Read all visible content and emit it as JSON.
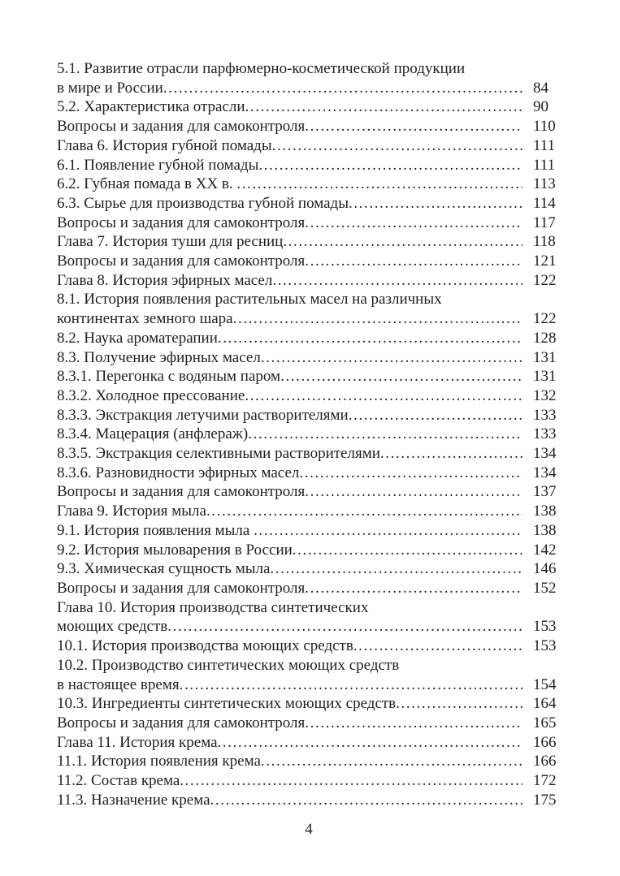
{
  "document": {
    "kind": "book-table-of-contents-page",
    "language": "Russian",
    "text_color": "#1f1f1f",
    "background_color": "#ffffff"
  },
  "toc": {
    "entries": [
      {
        "label": "5.1. Развитие отрасли парфюмерно-косметической продукции",
        "page": ""
      },
      {
        "label": "в мире и России",
        "page": "84"
      },
      {
        "label": "5.2. Характеристика отрасли",
        "page": "90"
      },
      {
        "label": "Вопросы и задания для самоконтроля",
        "page": "110"
      },
      {
        "label": "Глава 6. История губной помады",
        "page": "111"
      },
      {
        "label": "6.1. Появление губной помады",
        "page": "111"
      },
      {
        "label": "6.2. Губная помада в XX в. ",
        "page": "113"
      },
      {
        "label": "6.3. Сырье для производства губной помады",
        "page": "114"
      },
      {
        "label": "Вопросы и задания для самоконтроля",
        "page": "117"
      },
      {
        "label": "Глава 7. История туши для ресниц",
        "page": "118"
      },
      {
        "label": "Вопросы и задания для самоконтроля",
        "page": "121"
      },
      {
        "label": "Глава 8. История эфирных масел",
        "page": "122"
      },
      {
        "label": "8.1. История появления растительных масел на различных",
        "page": ""
      },
      {
        "label": "континентах земного шара",
        "page": "122"
      },
      {
        "label": "8.2. Наука ароматерапии",
        "page": "128"
      },
      {
        "label": "8.3. Получение эфирных масел",
        "page": "131"
      },
      {
        "label": "8.3.1. Перегонка с водяным паром",
        "page": "131"
      },
      {
        "label": "8.3.2. Холодное прессование",
        "page": "132"
      },
      {
        "label": "8.3.3. Экстракция летучими растворителями",
        "page": "133"
      },
      {
        "label": "8.3.4. Мацерация (анфлераж)",
        "page": "133"
      },
      {
        "label": "8.3.5. Экстракция селективными растворителями",
        "page": "134"
      },
      {
        "label": "8.3.6. Разновидности эфирных масел",
        "page": "134"
      },
      {
        "label": "Вопросы и задания для самоконтроля",
        "page": "137"
      },
      {
        "label": "Глава 9. История мыла",
        "page": "138"
      },
      {
        "label": "9.1. История появления мыла ",
        "page": "138"
      },
      {
        "label": "9.2. История мыловарения в России",
        "page": "142"
      },
      {
        "label": "9.3. Химическая сущность мыла",
        "page": "146"
      },
      {
        "label": "Вопросы и задания для самоконтроля",
        "page": "152"
      },
      {
        "label": "Глава 10. История производства синтетических",
        "page": ""
      },
      {
        "label": "моющих средств",
        "page": "153"
      },
      {
        "label": "10.1. История производства моющих средств",
        "page": "153"
      },
      {
        "label": "10.2. Производство синтетических моющих средств",
        "page": ""
      },
      {
        "label": "в настоящее время",
        "page": "154"
      },
      {
        "label": "10.3. Ингредиенты синтетических моющих средств",
        "page": "164"
      },
      {
        "label": "Вопросы и задания для самоконтроля",
        "page": "165"
      },
      {
        "label": "Глава 11. История крема",
        "page": "166"
      },
      {
        "label": "11.1. История появления крема",
        "page": "166"
      },
      {
        "label": "11.2. Состав крема",
        "page": "172"
      },
      {
        "label": "11.3. Назначение крема",
        "page": "175"
      }
    ]
  },
  "footer": {
    "page_number": "4"
  }
}
